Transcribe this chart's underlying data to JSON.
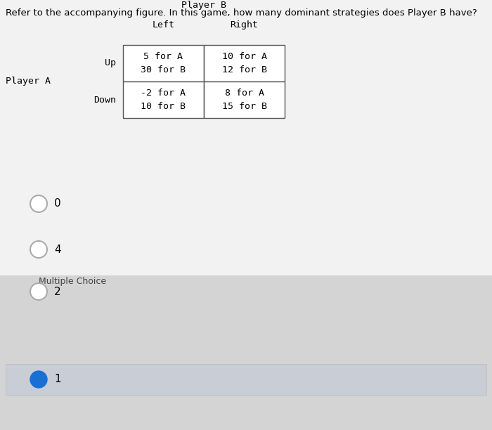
{
  "question": "Refer to the accompanying figure. In this game, how many dominant strategies does Player B have?",
  "player_b_label": "Player B",
  "player_a_label": "Player A",
  "col_labels": [
    "Left",
    "Right"
  ],
  "row_labels": [
    "Up",
    "Down"
  ],
  "cells": [
    [
      "5 for A\n30 for B",
      "10 for A\n12 for B"
    ],
    [
      "-2 for A\n10 for B",
      "8 for A\n15 for B"
    ]
  ],
  "section_label": "Multiple Choice",
  "choices": [
    "0",
    "4",
    "2",
    "1"
  ],
  "selected_index": 3,
  "bg_color_top": "#f0f0f0",
  "bg_color_bottom": "#d8d8d8",
  "table_bg": "#ffffff",
  "selected_color": "#1a6fd4",
  "circle_edge": "#aaaaaa",
  "question_font_size": 9.5,
  "table_font_size": 9.5,
  "mc_font_size": 9.0,
  "choice_font_size": 11
}
